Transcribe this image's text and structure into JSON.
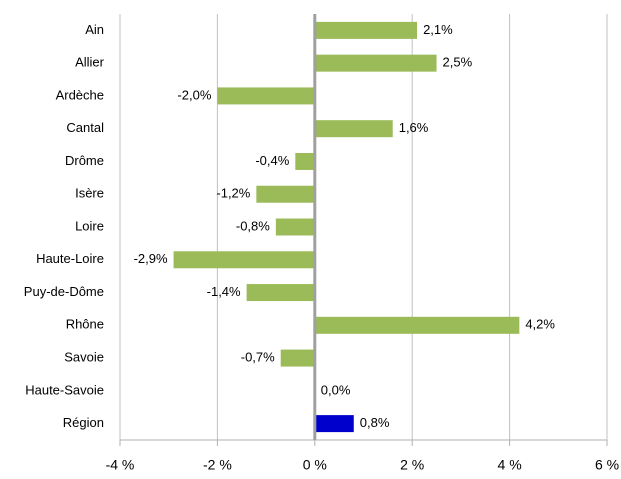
{
  "chart_data": {
    "type": "hbar",
    "categories": [
      "Ain",
      "Allier",
      "Ardèche",
      "Cantal",
      "Drôme",
      "Isère",
      "Loire",
      "Haute-Loire",
      "Puy-de-Dôme",
      "Rhône",
      "Savoie",
      "Haute-Savoie",
      "Région"
    ],
    "values": [
      2.1,
      2.5,
      -2.0,
      1.6,
      -0.4,
      -1.2,
      -0.8,
      -2.9,
      -1.4,
      4.2,
      -0.7,
      0.0,
      0.8
    ],
    "value_labels": [
      "2,1%",
      "2,5%",
      "-2,0%",
      "1,6%",
      "-0,4%",
      "-1,2%",
      "-0,8%",
      "-2,9%",
      "-1,4%",
      "4,2%",
      "-0,7%",
      "0,0%",
      "0,8%"
    ],
    "colors": [
      "#9bbb59",
      "#9bbb59",
      "#9bbb59",
      "#9bbb59",
      "#9bbb59",
      "#9bbb59",
      "#9bbb59",
      "#9bbb59",
      "#9bbb59",
      "#9bbb59",
      "#9bbb59",
      "#9bbb59",
      "#0000cc"
    ],
    "xlim": [
      -4,
      6
    ],
    "xticks": [
      {
        "value": -4,
        "label": "-4 %"
      },
      {
        "value": -2,
        "label": "-2 %"
      },
      {
        "value": 0,
        "label": "0 %"
      },
      {
        "value": 2,
        "label": "2 %"
      },
      {
        "value": 4,
        "label": "4 %"
      },
      {
        "value": 6,
        "label": "6 %"
      }
    ],
    "grid": true
  }
}
